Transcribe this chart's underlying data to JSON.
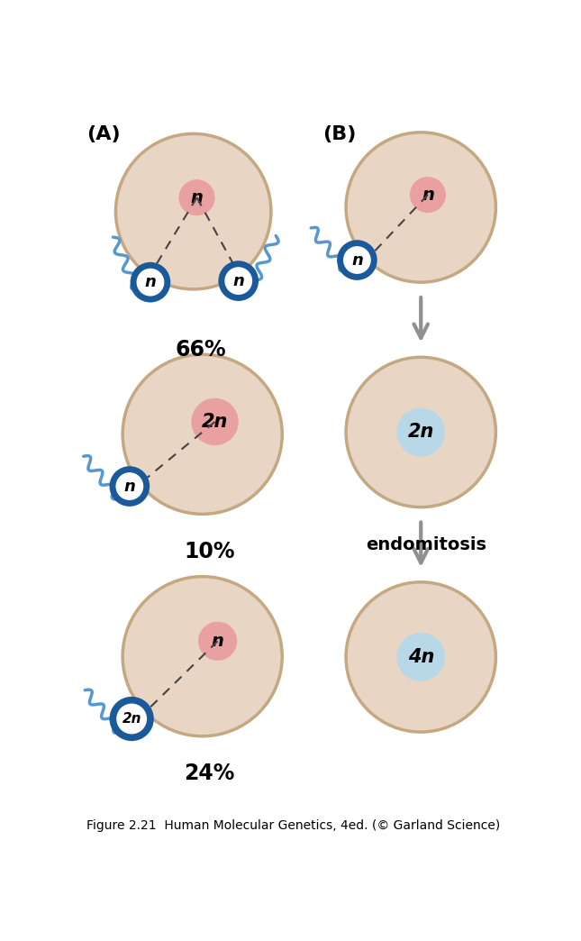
{
  "bg_color": "#ffffff",
  "cell_fill": "#e8d5c4",
  "cell_edge": "#c4a882",
  "nucleus_pink_fill": "#e8a0a0",
  "nucleus_blue_fill": "#b8d8e8",
  "sperm_head_fill": "#ffffff",
  "sperm_head_edge": "#1a5a9a",
  "sperm_tail_color": "#5898d0",
  "arrow_color": "#909090",
  "dashed_color": "#444444",
  "label_A": "(A)",
  "label_B": "(B)",
  "pct_1": "66%",
  "pct_2": "10%",
  "pct_3": "24%",
  "endomitosis_text": "endomitosis",
  "caption": "Figure 2.21  Human Molecular Genetics, 4ed. (© Garland Science)"
}
